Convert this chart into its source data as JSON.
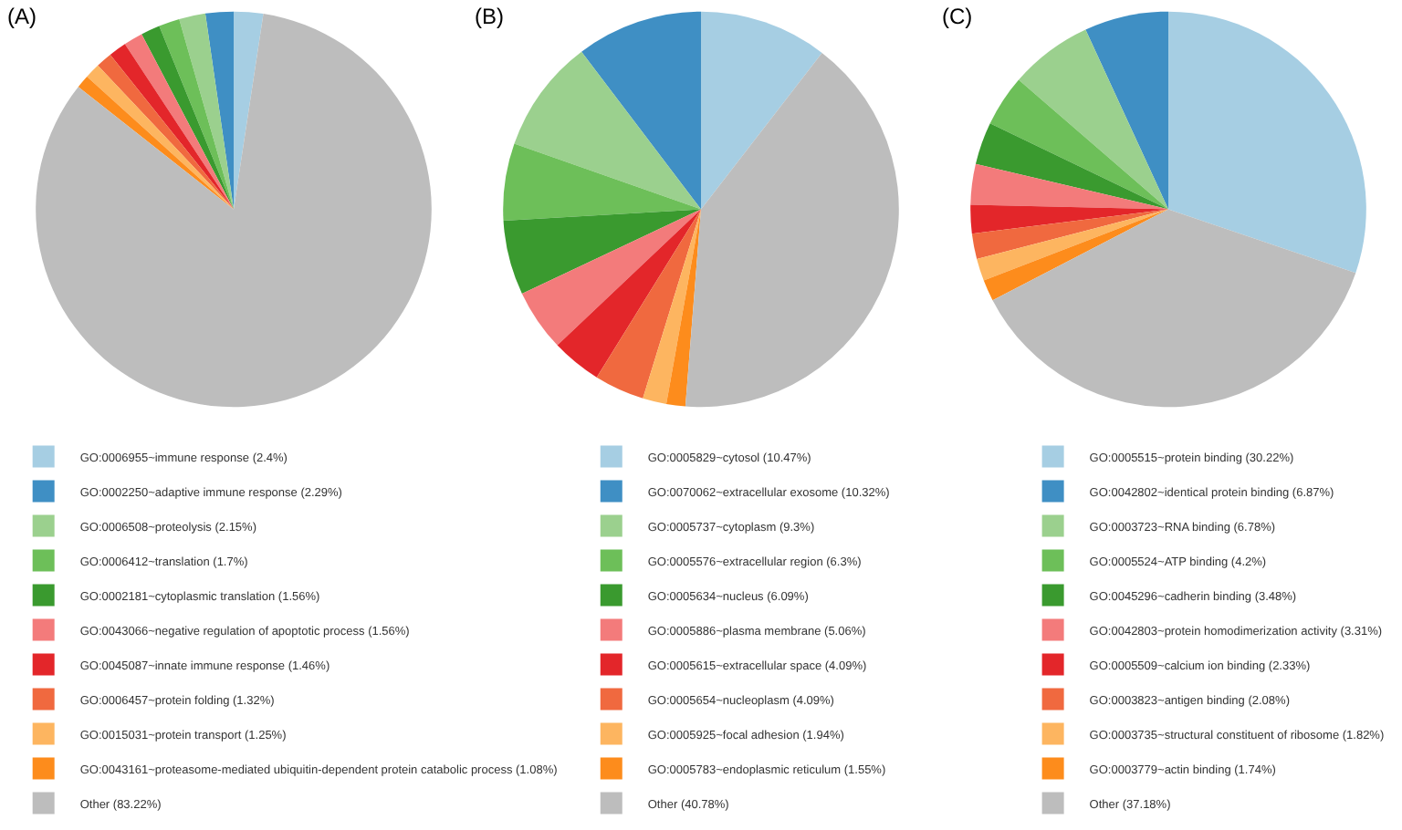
{
  "chart_data": [
    {
      "type": "pie",
      "title": "(A)",
      "legend": "bottom",
      "categories": [
        "GO:0006955~immune response (2.4%)",
        "GO:0002250~adaptive immune response (2.29%)",
        "GO:0006508~proteolysis (2.15%)",
        "GO:0006412~translation (1.7%)",
        "GO:0002181~cytoplasmic translation (1.56%)",
        "GO:0043066~negative regulation of apoptotic process (1.56%)",
        "GO:0045087~innate immune response (1.46%)",
        "GO:0006457~protein folding (1.32%)",
        "GO:0015031~protein transport (1.25%)",
        "GO:0043161~proteasome-mediated ubiquitin-dependent protein catabolic process (1.08%)",
        "Other (83.22%)"
      ],
      "values": [
        2.4,
        2.29,
        2.15,
        1.7,
        1.56,
        1.56,
        1.46,
        1.32,
        1.25,
        1.08,
        83.22
      ],
      "colors": [
        "#a6cee3",
        "#3f8fc4",
        "#9bd08e",
        "#6dbf59",
        "#3a9a2f",
        "#f37b7b",
        "#e3262a",
        "#f0693f",
        "#fdb560",
        "#fd8c1c",
        "#bdbdbd"
      ]
    },
    {
      "type": "pie",
      "title": "(B)",
      "legend": "bottom",
      "categories": [
        "GO:0005829~cytosol (10.47%)",
        "GO:0070062~extracellular exosome (10.32%)",
        "GO:0005737~cytoplasm (9.3%)",
        "GO:0005576~extracellular region (6.3%)",
        "GO:0005634~nucleus (6.09%)",
        "GO:0005886~plasma membrane (5.06%)",
        "GO:0005615~extracellular space (4.09%)",
        "GO:0005654~nucleoplasm (4.09%)",
        "GO:0005925~focal adhesion (1.94%)",
        "GO:0005783~endoplasmic reticulum (1.55%)",
        "Other (40.78%)"
      ],
      "values": [
        10.47,
        10.32,
        9.3,
        6.3,
        6.09,
        5.06,
        4.09,
        4.09,
        1.94,
        1.55,
        40.78
      ],
      "colors": [
        "#a6cee3",
        "#3f8fc4",
        "#9bd08e",
        "#6dbf59",
        "#3a9a2f",
        "#f37b7b",
        "#e3262a",
        "#f0693f",
        "#fdb560",
        "#fd8c1c",
        "#bdbdbd"
      ]
    },
    {
      "type": "pie",
      "title": "(C)",
      "legend": "bottom",
      "categories": [
        "GO:0005515~protein binding (30.22%)",
        "GO:0042802~identical protein binding (6.87%)",
        "GO:0003723~RNA binding (6.78%)",
        "GO:0005524~ATP binding (4.2%)",
        "GO:0045296~cadherin binding (3.48%)",
        "GO:0042803~protein homodimerization activity (3.31%)",
        "GO:0005509~calcium ion binding (2.33%)",
        "GO:0003823~antigen binding (2.08%)",
        "GO:0003735~structural constituent of ribosome (1.82%)",
        "GO:0003779~actin binding (1.74%)",
        "Other (37.18%)"
      ],
      "values": [
        30.22,
        6.87,
        6.78,
        4.2,
        3.48,
        3.31,
        2.33,
        2.08,
        1.82,
        1.74,
        37.18
      ],
      "colors": [
        "#a6cee3",
        "#3f8fc4",
        "#9bd08e",
        "#6dbf59",
        "#3a9a2f",
        "#f37b7b",
        "#e3262a",
        "#f0693f",
        "#fdb560",
        "#fd8c1c",
        "#bdbdbd"
      ]
    }
  ]
}
